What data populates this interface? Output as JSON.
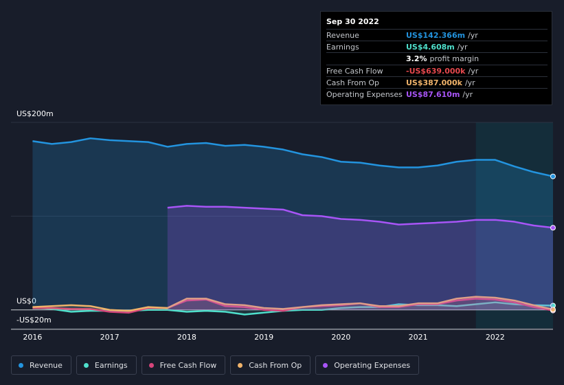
{
  "chart_data": {
    "type": "line",
    "x": [
      2016,
      2016.25,
      2016.5,
      2016.75,
      2017,
      2017.25,
      2017.5,
      2017.75,
      2018,
      2018.25,
      2018.5,
      2018.75,
      2019,
      2019.25,
      2019.5,
      2019.75,
      2020,
      2020.25,
      2020.5,
      2020.75,
      2021,
      2021.25,
      2021.5,
      2021.75,
      2022,
      2022.25,
      2022.5,
      2022.75
    ],
    "xlim": [
      2015.72,
      2022.75
    ],
    "xticks": [
      2016,
      2017,
      2018,
      2019,
      2020,
      2021,
      2022
    ],
    "ylim": [
      -20,
      200
    ],
    "yticks": [
      {
        "value": 200,
        "label": "US$200m"
      },
      {
        "value": 100,
        "label": null
      },
      {
        "value": 0,
        "label": "US$0"
      },
      {
        "value": -20,
        "label": "-US$20m"
      }
    ],
    "grid": true,
    "series": [
      {
        "name": "Revenue",
        "color": "#2394df",
        "area": true,
        "values": [
          180,
          177,
          179,
          183,
          181,
          180,
          179,
          174,
          177,
          178,
          175,
          176,
          174,
          171,
          166,
          163,
          158,
          157,
          154,
          152,
          152,
          154,
          158,
          160,
          160,
          153,
          147,
          142.366
        ]
      },
      {
        "name": "Earnings",
        "color": "#4fe0cc",
        "area": false,
        "values": [
          3,
          1,
          -2,
          -1,
          -1,
          -1,
          0,
          0,
          -2,
          -1,
          -2,
          -5,
          -3,
          -1,
          0,
          0,
          2,
          3,
          3,
          6,
          5,
          5,
          4,
          6,
          8,
          6,
          5,
          4.608
        ]
      },
      {
        "name": "Free Cash Flow",
        "color": "#d6457a",
        "area": false,
        "values": [
          2,
          2,
          1,
          1,
          -2,
          -3,
          2,
          2,
          10,
          11,
          4,
          3,
          0,
          -1,
          3,
          4,
          5,
          7,
          3,
          3,
          6,
          6,
          10,
          12,
          11,
          8,
          3,
          -0.639
        ]
      },
      {
        "name": "Cash From Op",
        "color": "#f0b36a",
        "area": false,
        "values": [
          3,
          4,
          5,
          4,
          0,
          -1,
          3,
          2,
          12,
          12,
          6,
          5,
          2,
          1,
          3,
          5,
          6,
          7,
          4,
          4,
          7,
          7,
          12,
          14,
          13,
          10,
          5,
          0.387
        ]
      },
      {
        "name": "Operating Expenses",
        "color": "#a855f7",
        "area": true,
        "values": [
          null,
          null,
          null,
          null,
          null,
          null,
          null,
          109,
          111,
          110,
          110,
          109,
          108,
          107,
          101,
          100,
          97,
          96,
          94,
          91,
          92,
          93,
          94,
          96,
          96,
          94,
          90,
          87.61
        ]
      }
    ],
    "tooltip": {
      "date": "Sep 30 2022",
      "rows": [
        {
          "label": "Revenue",
          "value": "US$142.366m",
          "unit": "/yr",
          "color": "#2394df"
        },
        {
          "label": "Earnings",
          "value": "US$4.608m",
          "unit": "/yr",
          "color": "#4fe0cc"
        },
        {
          "label": null,
          "value": "3.2%",
          "unit": "profit margin",
          "color": "#ffffff"
        },
        {
          "label": "Free Cash Flow",
          "value": "-US$639.000k",
          "unit": "/yr",
          "color": "#e5484d"
        },
        {
          "label": "Cash From Op",
          "value": "US$387.000k",
          "unit": "/yr",
          "color": "#f0b36a"
        },
        {
          "label": "Operating Expenses",
          "value": "US$87.610m",
          "unit": "/yr",
          "color": "#a855f7"
        }
      ]
    }
  }
}
